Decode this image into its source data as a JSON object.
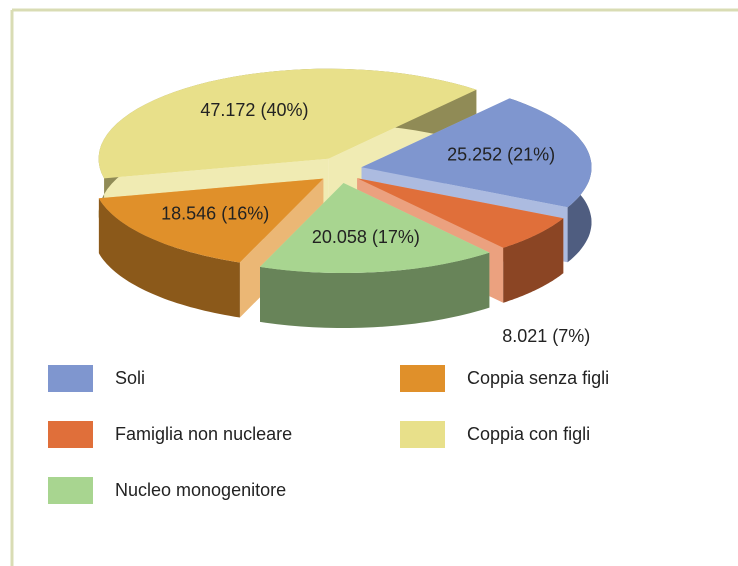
{
  "chart_data": {
    "type": "pie",
    "categories": [
      "Soli",
      "Famiglia non nucleare",
      "Nucleo monogenitore",
      "Coppia senza figli",
      "Coppia con figli"
    ],
    "values": [
      25252,
      8021,
      20058,
      18546,
      47172
    ],
    "value_labels": [
      "25.252 (21%)",
      "8.021 (7%)",
      "20.058 (17%)",
      "18.546 (16%)",
      "47.172 (40%)"
    ],
    "colors": [
      "#7f96cf",
      "#e06f3a",
      "#a8d590",
      "#e0902a",
      "#e8e08a"
    ],
    "legend": "bottom"
  }
}
